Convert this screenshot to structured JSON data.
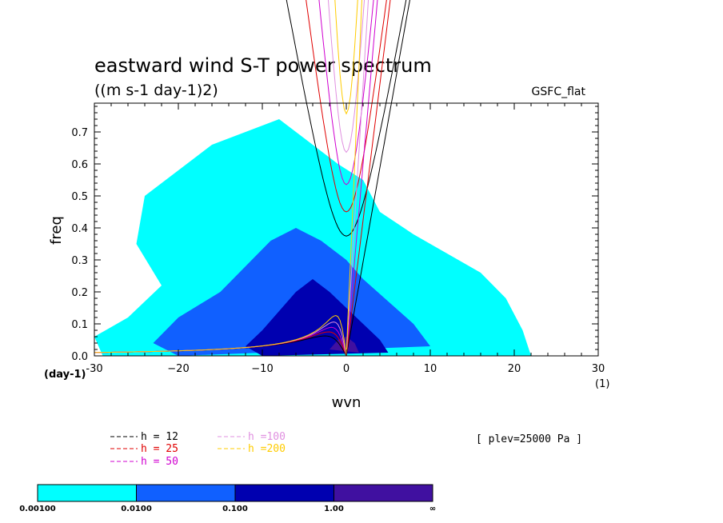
{
  "chart_data": {
    "type": "heatmap",
    "title": "eastward wind S-T power spectrum",
    "units_label": "((m s-1 day-1)2)",
    "source_label": "GSFC_flat",
    "xlabel": "wvn",
    "ylabel": "freq",
    "x_unit_label": "(1)",
    "y_unit_label": "(day-1)",
    "xlim": [
      -30,
      30
    ],
    "ylim": [
      0,
      0.79
    ],
    "x_ticks": [
      -30,
      -20,
      -10,
      0,
      10,
      20,
      30
    ],
    "x_tick_labels": [
      "-30",
      "−20",
      "−10",
      "0",
      "10",
      "20",
      "30"
    ],
    "y_ticks": [
      0,
      0.1,
      0.2,
      0.3,
      0.4,
      0.5,
      0.6,
      0.7
    ],
    "y_tick_labels": [
      "0.0",
      "0.1",
      "0.2",
      "0.3",
      "0.4",
      "0.5",
      "0.6",
      "0.7"
    ],
    "annotation": "[ plev=25000 Pa ]",
    "legend": [
      {
        "label": "h = 12",
        "depth": 12,
        "color": "#000000"
      },
      {
        "label": "h = 25",
        "depth": 25,
        "color": "#e00000"
      },
      {
        "label": "h = 50",
        "depth": 50,
        "color": "#d000d0"
      },
      {
        "label": "h =100",
        "depth": 100,
        "color": "#e090e0"
      },
      {
        "label": "h =200",
        "depth": 200,
        "color": "#ffcc00"
      }
    ],
    "colorbar": {
      "levels": [
        "0.00100",
        "0.0100",
        "0.100",
        "1.00",
        "∞"
      ],
      "colors": [
        "#00ffff",
        "#1060ff",
        "#0000b0",
        "#4010a0"
      ]
    },
    "heatmap_regions": [
      {
        "level": 0,
        "points": [
          [
            -30,
            0.06
          ],
          [
            -26,
            0.12
          ],
          [
            -22,
            0.22
          ],
          [
            -25,
            0.35
          ],
          [
            -24,
            0.5
          ],
          [
            -20,
            0.58
          ],
          [
            -16,
            0.66
          ],
          [
            -12,
            0.7
          ],
          [
            -8,
            0.74
          ],
          [
            -4,
            0.66
          ],
          [
            -1,
            0.6
          ],
          [
            2,
            0.55
          ],
          [
            4,
            0.45
          ],
          [
            8,
            0.38
          ],
          [
            12,
            0.32
          ],
          [
            16,
            0.26
          ],
          [
            19,
            0.18
          ],
          [
            21,
            0.08
          ],
          [
            22,
            0.0
          ],
          [
            -29,
            0.0
          ]
        ]
      },
      {
        "level": 1,
        "points": [
          [
            -23,
            0.04
          ],
          [
            -20,
            0.12
          ],
          [
            -15,
            0.2
          ],
          [
            -12,
            0.28
          ],
          [
            -9,
            0.36
          ],
          [
            -6,
            0.4
          ],
          [
            -3,
            0.36
          ],
          [
            0,
            0.3
          ],
          [
            2,
            0.24
          ],
          [
            5,
            0.17
          ],
          [
            8,
            0.1
          ],
          [
            10,
            0.03
          ],
          [
            -20,
            0.0
          ]
        ]
      },
      {
        "level": 2,
        "points": [
          [
            -12,
            0.03
          ],
          [
            -10,
            0.08
          ],
          [
            -8,
            0.14
          ],
          [
            -6,
            0.2
          ],
          [
            -4,
            0.24
          ],
          [
            -2,
            0.2
          ],
          [
            0,
            0.15
          ],
          [
            2,
            0.1
          ],
          [
            4,
            0.05
          ],
          [
            5,
            0.01
          ],
          [
            -10,
            0.0
          ]
        ]
      },
      {
        "level": 3,
        "points": [
          [
            -2,
            0.02
          ],
          [
            -1,
            0.05
          ],
          [
            0,
            0.06
          ],
          [
            1,
            0.04
          ],
          [
            1.5,
            0.01
          ]
        ]
      }
    ]
  }
}
